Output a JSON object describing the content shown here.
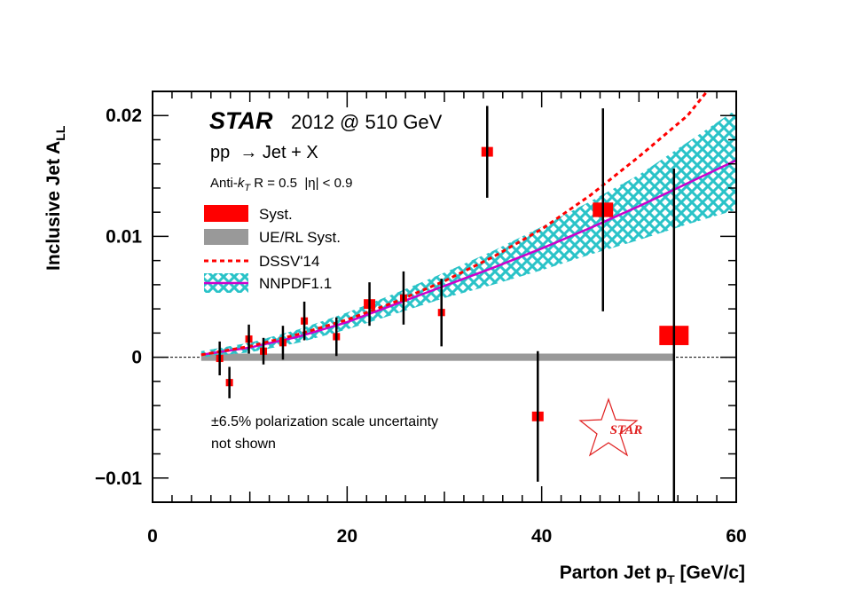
{
  "chart_data": {
    "type": "scatter",
    "title": "",
    "xlabel": "Parton Jet p",
    "xlabel_sub": "T",
    "xlabel_unit": " [GeV/c]",
    "ylabel": "Inclusive Jet A",
    "ylabel_sub": "LL",
    "xlim": [
      0,
      60
    ],
    "ylim": [
      -0.012,
      0.022
    ],
    "x_ticks": [
      "0",
      "20",
      "40",
      "60"
    ],
    "y_ticks": [
      "−0.01",
      "0",
      "0.01",
      "0.02"
    ],
    "annotations": {
      "experiment": "STAR",
      "run": "2012 @ 510 GeV",
      "process": "pp  → Jet + X",
      "algo_prefix": "Anti-",
      "algo_k": "k",
      "algo_sub": "T",
      "algo_rest": " R = 0.5  |η| < 0.9",
      "note_line1": "±6.5% polarization scale uncertainty",
      "note_line2": "not shown",
      "logo": "STAR"
    },
    "legend": {
      "placement": "top-left",
      "entries": [
        "Syst.",
        "UE/RL Syst.",
        "DSSV'14",
        "NNPDF1.1"
      ]
    },
    "colors": {
      "data": "#ff0000",
      "ue_syst": "#999999",
      "dssv": "#ff0000",
      "nnpdf": "#cc00cc",
      "nnpdf_band": "#2ac3c8",
      "star_text": "#1010cc"
    },
    "series": [
      {
        "name": "Data",
        "points": [
          {
            "x": 6.9,
            "y": -0.0001,
            "err": 0.0014,
            "syst": 0.0003
          },
          {
            "x": 7.9,
            "y": -0.0021,
            "err": 0.0013,
            "syst": 0.0003
          },
          {
            "x": 9.9,
            "y": 0.0015,
            "err": 0.0012,
            "syst": 0.0003
          },
          {
            "x": 11.4,
            "y": 0.0005,
            "err": 0.0011,
            "syst": 0.0003
          },
          {
            "x": 13.4,
            "y": 0.0012,
            "err": 0.0014,
            "syst": 0.0003
          },
          {
            "x": 15.6,
            "y": 0.003,
            "err": 0.0016,
            "syst": 0.0003
          },
          {
            "x": 18.9,
            "y": 0.0017,
            "err": 0.0016,
            "syst": 0.0003
          },
          {
            "x": 22.3,
            "y": 0.0044,
            "err": 0.0018,
            "syst": 0.0004
          },
          {
            "x": 25.8,
            "y": 0.0049,
            "err": 0.0022,
            "syst": 0.0003
          },
          {
            "x": 29.7,
            "y": 0.0037,
            "err": 0.0028,
            "syst": 0.0003
          },
          {
            "x": 34.4,
            "y": 0.017,
            "err": 0.0038,
            "syst": 0.0004
          },
          {
            "x": 39.6,
            "y": -0.0049,
            "err": 0.0054,
            "syst": 0.0004
          },
          {
            "x": 46.3,
            "y": 0.0122,
            "err": 0.0084,
            "syst": 0.0006
          },
          {
            "x": 53.6,
            "y": 0.0018,
            "err": 0.0138,
            "syst": 0.0008
          }
        ]
      },
      {
        "name": "NNPDF1.1",
        "x": [
          5,
          10,
          15,
          20,
          25,
          30,
          35,
          40,
          45,
          50,
          55,
          60
        ],
        "y": [
          0.0002,
          0.0008,
          0.0017,
          0.0029,
          0.0044,
          0.0059,
          0.0074,
          0.009,
          0.0107,
          0.0125,
          0.0144,
          0.0163
        ],
        "band_lower": [
          0.0,
          0.0004,
          0.0012,
          0.0023,
          0.0036,
          0.0049,
          0.006,
          0.0072,
          0.0085,
          0.0097,
          0.011,
          0.0122
        ],
        "band_upper": [
          0.0005,
          0.0012,
          0.0023,
          0.0037,
          0.0053,
          0.007,
          0.0088,
          0.0108,
          0.0129,
          0.0151,
          0.0178,
          0.0205
        ]
      },
      {
        "name": "DSSV'14",
        "x": [
          5,
          10,
          15,
          20,
          25,
          30,
          35,
          40,
          45,
          50,
          55,
          57
        ],
        "y": [
          0.0002,
          0.0009,
          0.0019,
          0.0031,
          0.0046,
          0.0063,
          0.0083,
          0.0106,
          0.0134,
          0.0166,
          0.02,
          0.022
        ]
      },
      {
        "name": "UE/RL Syst.",
        "x": [
          5,
          53.6
        ],
        "y": [
          0,
          0
        ],
        "half_width": 0.0003
      }
    ]
  }
}
